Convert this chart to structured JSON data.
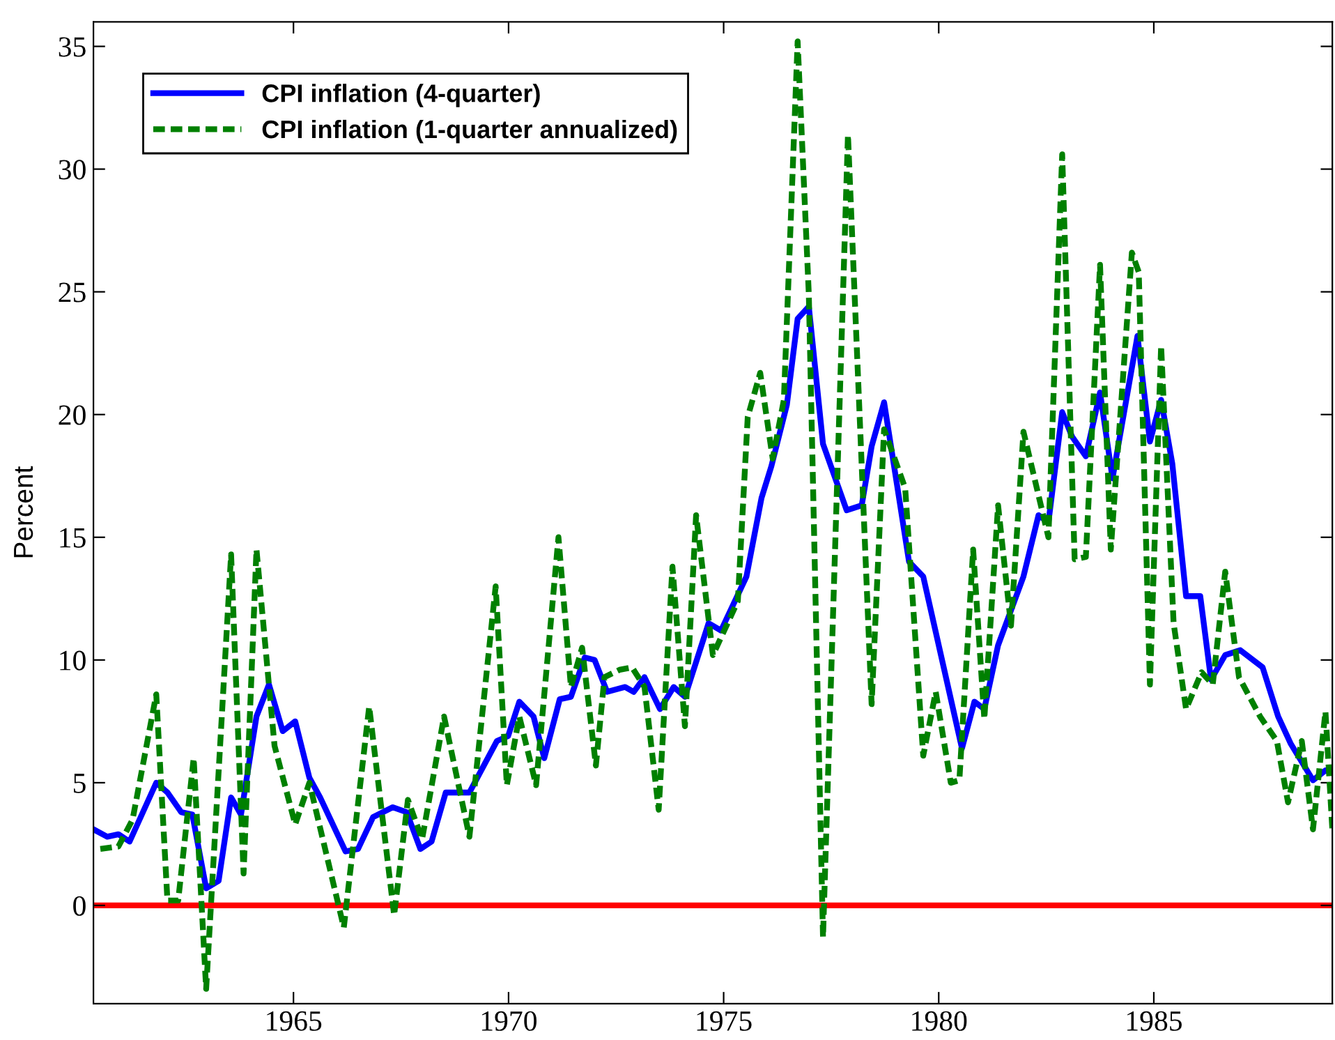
{
  "chart_data": {
    "type": "line",
    "ylabel": "Percent",
    "xlim": [
      1960.35,
      1989.15
    ],
    "xticks": [
      1965,
      1970,
      1975,
      1980,
      1985
    ],
    "ylim": [
      -4,
      36
    ],
    "yticks": [
      0,
      5,
      10,
      15,
      20,
      25,
      30,
      35
    ],
    "grid": false,
    "legend": "top left",
    "marker": "none",
    "ref_lines": [
      {
        "axis": "y",
        "value": 0,
        "color": "#ff0000",
        "line_style": "solid"
      }
    ],
    "series": [
      {
        "name": "CPI inflation (4-quarter)",
        "color": "#0000ff",
        "line_style": "solid",
        "x": [
          1960.35,
          1960.67,
          1960.93,
          1961.19,
          1961.81,
          1962.07,
          1962.39,
          1962.65,
          1962.97,
          1963.26,
          1963.55,
          1963.78,
          1964.14,
          1964.43,
          1964.75,
          1965.04,
          1965.37,
          1965.62,
          1966.21,
          1966.5,
          1966.85,
          1967.31,
          1967.63,
          1967.95,
          1968.21,
          1968.54,
          1969.09,
          1969.73,
          1969.99,
          1970.25,
          1970.58,
          1970.83,
          1971.19,
          1971.45,
          1971.77,
          1972.0,
          1972.29,
          1972.71,
          1972.91,
          1973.16,
          1973.52,
          1973.84,
          1974.1,
          1974.65,
          1974.94,
          1975.53,
          1975.88,
          1976.11,
          1976.47,
          1976.72,
          1976.98,
          1977.31,
          1977.86,
          1978.21,
          1978.44,
          1978.73,
          1979.31,
          1979.64,
          1980.54,
          1980.83,
          1981.06,
          1981.38,
          1981.97,
          1982.32,
          1982.55,
          1982.87,
          1983.1,
          1983.42,
          1983.75,
          1984.04,
          1984.62,
          1984.91,
          1985.17,
          1985.43,
          1985.75,
          1986.08,
          1986.33,
          1986.66,
          1987.01,
          1987.53,
          1987.89,
          1988.18,
          1988.7,
          1988.99,
          1989.15
        ],
        "values": [
          3.1,
          2.8,
          2.9,
          2.6,
          5.0,
          4.6,
          3.8,
          3.7,
          0.7,
          1.0,
          4.4,
          3.7,
          7.7,
          9.0,
          7.1,
          7.5,
          5.2,
          4.4,
          2.2,
          2.3,
          3.6,
          4.0,
          3.8,
          2.3,
          2.6,
          4.6,
          4.6,
          6.7,
          6.9,
          8.3,
          7.7,
          6.0,
          8.4,
          8.5,
          10.1,
          10.0,
          8.7,
          8.9,
          8.7,
          9.3,
          8.0,
          8.9,
          8.5,
          11.5,
          11.2,
          13.4,
          16.6,
          17.9,
          20.4,
          23.9,
          24.4,
          18.8,
          16.1,
          16.3,
          18.7,
          20.5,
          14.0,
          13.4,
          6.4,
          8.3,
          8.0,
          10.6,
          13.4,
          15.9,
          15.6,
          20.1,
          19.1,
          18.3,
          20.9,
          17.4,
          23.2,
          18.9,
          20.6,
          18.0,
          12.6,
          12.6,
          9.2,
          10.2,
          10.4,
          9.7,
          7.7,
          6.6,
          5.1,
          5.5,
          5.4
        ]
      },
      {
        "name": "CPI inflation (1-quarter annualized)",
        "color": "#008000",
        "line_style": "dashed",
        "x": [
          1960.51,
          1960.93,
          1961.26,
          1961.81,
          1962.07,
          1962.32,
          1962.68,
          1962.97,
          1963.55,
          1963.84,
          1964.14,
          1964.56,
          1965.04,
          1965.37,
          1966.17,
          1966.76,
          1967.34,
          1967.66,
          1967.99,
          1968.5,
          1969.09,
          1969.7,
          1969.96,
          1970.25,
          1970.64,
          1971.16,
          1971.45,
          1971.71,
          1972.03,
          1972.23,
          1972.58,
          1972.87,
          1973.16,
          1973.49,
          1973.81,
          1974.1,
          1974.36,
          1974.75,
          1975.33,
          1975.56,
          1975.85,
          1976.14,
          1976.4,
          1976.72,
          1976.98,
          1977.31,
          1977.89,
          1978.44,
          1978.73,
          1979.22,
          1979.64,
          1979.93,
          1980.28,
          1980.48,
          1980.8,
          1981.06,
          1981.38,
          1981.68,
          1981.97,
          1982.55,
          1982.87,
          1983.16,
          1983.42,
          1983.75,
          1984.0,
          1984.49,
          1984.65,
          1984.91,
          1985.17,
          1985.46,
          1985.75,
          1986.11,
          1986.37,
          1986.66,
          1986.98,
          1987.47,
          1987.86,
          1988.12,
          1988.44,
          1988.7,
          1988.99,
          1989.15
        ],
        "values": [
          2.3,
          2.4,
          3.5,
          8.6,
          0.2,
          0.2,
          6.0,
          -3.4,
          14.3,
          1.3,
          14.5,
          6.5,
          3.3,
          5.0,
          -0.9,
          8.1,
          -0.4,
          4.3,
          2.7,
          7.7,
          2.8,
          13.0,
          4.9,
          7.7,
          4.9,
          15.0,
          8.9,
          10.5,
          5.7,
          9.3,
          9.6,
          9.7,
          8.9,
          3.9,
          13.8,
          7.3,
          15.9,
          10.2,
          12.4,
          19.9,
          21.7,
          18.2,
          20.6,
          35.2,
          24.9,
          -1.3,
          31.4,
          8.2,
          19.4,
          17.0,
          6.1,
          8.7,
          5.0,
          5.1,
          14.5,
          7.6,
          16.3,
          11.4,
          19.3,
          15.0,
          30.6,
          14.1,
          14.2,
          26.1,
          14.5,
          26.6,
          25.8,
          9.0,
          22.8,
          11.5,
          8.0,
          9.5,
          9.0,
          13.6,
          9.3,
          7.7,
          6.7,
          4.2,
          6.7,
          3.1,
          7.9,
          3.1
        ]
      }
    ]
  }
}
